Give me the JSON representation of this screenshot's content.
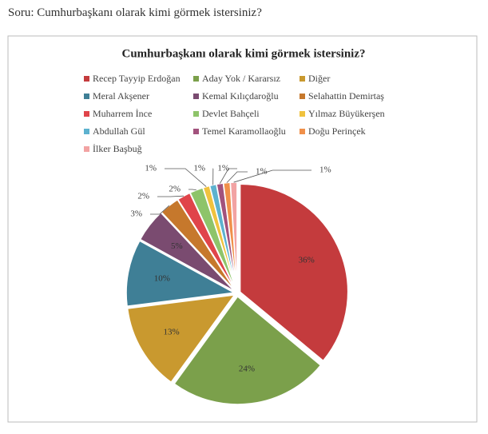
{
  "heading": "Soru: Cumhurbaşkanı olarak kimi görmek istersiniz?",
  "chart_data": {
    "type": "pie",
    "title": "Cumhurbaşkanı olarak kimi görmek istersiniz?",
    "categories": [
      "Recep Tayyip Erdoğan",
      "Aday Yok / Kararsız",
      "Diğer",
      "Meral Akşener",
      "Kemal Kılıçdaroğlu",
      "Selahattin Demirtaş",
      "Muharrem İnce",
      "Devlet Bahçeli",
      "Yılmaz Büyükerşen",
      "Abdullah Gül",
      "Temel Karamollaoğlu",
      "Doğu Perinçek",
      "İlker Başbuğ"
    ],
    "values": [
      36,
      24,
      13,
      10,
      5,
      3,
      2,
      2,
      1,
      1,
      1,
      1,
      1
    ],
    "value_labels": [
      "36%",
      "24%",
      "13%",
      "10%",
      "5%",
      "3%",
      "2%",
      "2%",
      "1%",
      "1%",
      "1%",
      "1%",
      "1%"
    ],
    "colors": [
      "#c43b3d",
      "#7ba04b",
      "#c9992f",
      "#3f7f96",
      "#7a4b70",
      "#c6782c",
      "#e0444a",
      "#8ec46a",
      "#f0c23e",
      "#5db2cf",
      "#a2527d",
      "#f0904a",
      "#f2a3a3"
    ],
    "legend": "top"
  }
}
